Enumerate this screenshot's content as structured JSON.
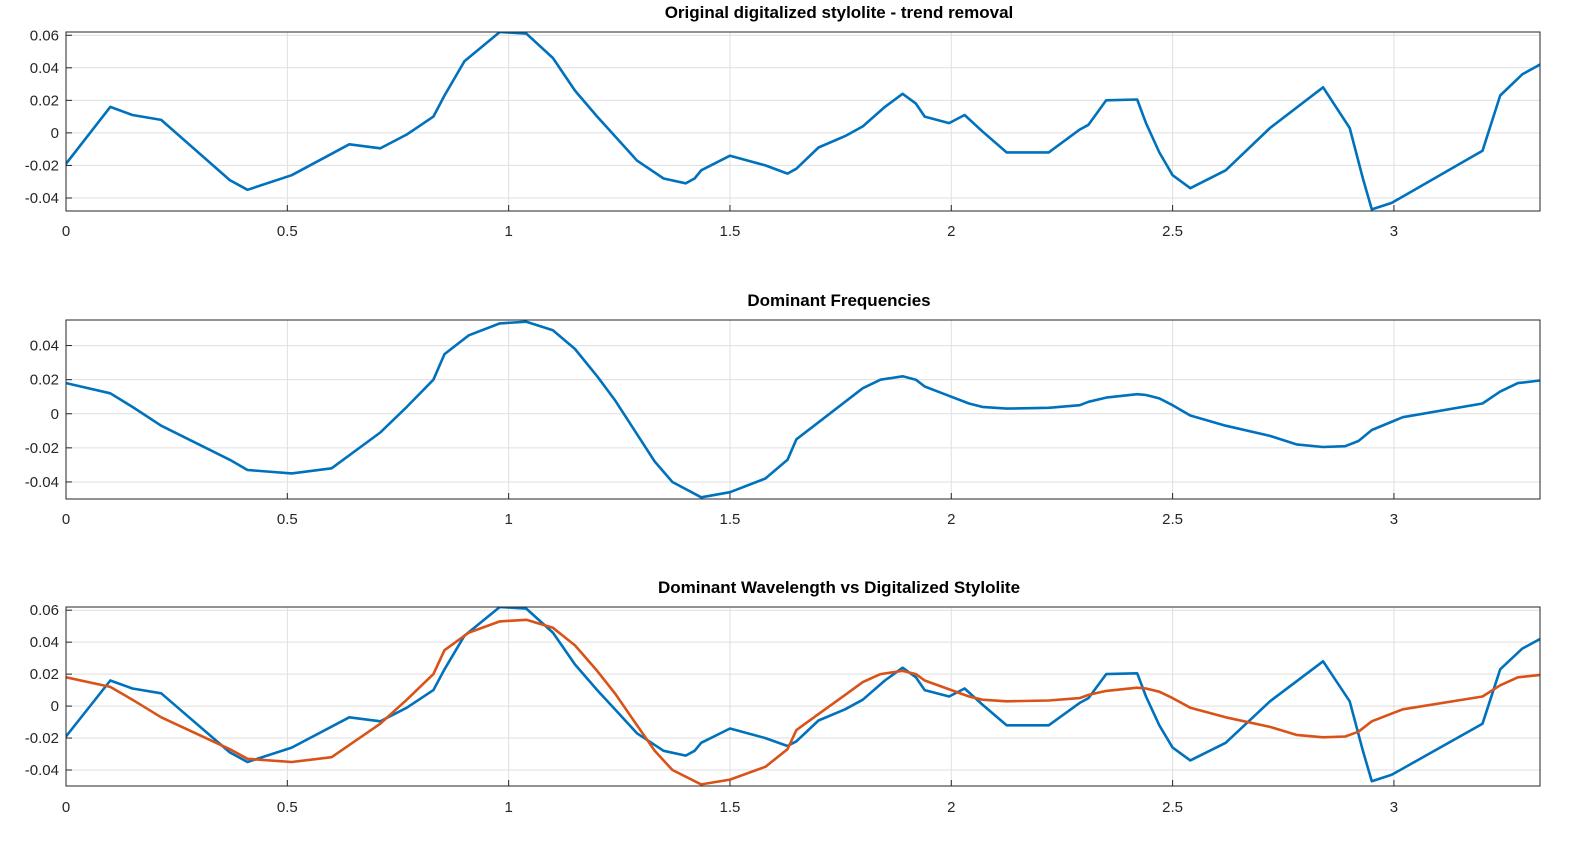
{
  "chart_data": [
    {
      "type": "line",
      "title": "Original digitalized stylolite - trend removal",
      "xlabel": "",
      "ylabel": "",
      "xlim": [
        0,
        3.33
      ],
      "ylim": [
        -0.048,
        0.062
      ],
      "grid": true,
      "xticks": [
        "0",
        "0.5",
        "1",
        "1.5",
        "2",
        "2.5",
        "3"
      ],
      "yticks": [
        "0.06",
        "0.04",
        "0.02",
        "0",
        "-0.02",
        "-0.04"
      ],
      "series": [
        {
          "color": "#0072bd",
          "x": [
            0,
            0.1,
            0.15,
            0.215,
            0.37,
            0.41,
            0.51,
            0.64,
            0.71,
            0.77,
            0.83,
            0.855,
            0.9,
            0.98,
            1.04,
            1.1,
            1.15,
            1.2,
            1.24,
            1.29,
            1.35,
            1.4,
            1.42,
            1.435,
            1.5,
            1.58,
            1.63,
            1.65,
            1.7,
            1.76,
            1.8,
            1.85,
            1.89,
            1.92,
            1.94,
            1.995,
            2.03,
            2.07,
            2.125,
            2.22,
            2.29,
            2.31,
            2.35,
            2.42,
            2.44,
            2.47,
            2.5,
            2.54,
            2.62,
            2.72,
            2.84,
            2.9,
            2.93,
            2.95,
            2.995,
            3.2,
            3.24,
            3.29,
            3.33
          ],
          "values": [
            -0.019,
            0.016,
            0.011,
            0.008,
            -0.029,
            -0.035,
            -0.026,
            -0.007,
            -0.0095,
            -0.001,
            0.01,
            0.023,
            0.044,
            0.062,
            0.061,
            0.046,
            0.026,
            0.01,
            -0.002,
            -0.017,
            -0.028,
            -0.031,
            -0.028,
            -0.023,
            -0.014,
            -0.02,
            -0.025,
            -0.022,
            -0.009,
            -0.002,
            0.004,
            0.016,
            0.024,
            0.018,
            0.01,
            0.006,
            0.011,
            0.001,
            -0.012,
            -0.012,
            0.002,
            0.005,
            0.02,
            0.0205,
            0.006,
            -0.012,
            -0.026,
            -0.034,
            -0.023,
            0.003,
            0.028,
            0.003,
            -0.028,
            -0.047,
            -0.043,
            -0.011,
            0.023,
            0.036,
            0.042
          ]
        }
      ]
    },
    {
      "type": "line",
      "title": "Dominant Frequencies",
      "xlabel": "",
      "ylabel": "",
      "xlim": [
        0,
        3.33
      ],
      "ylim": [
        -0.05,
        0.055
      ],
      "grid": true,
      "xticks": [
        "0",
        "0.5",
        "1",
        "1.5",
        "2",
        "2.5",
        "3"
      ],
      "yticks": [
        "0.04",
        "0.02",
        "0",
        "-0.02",
        "-0.04"
      ],
      "series": [
        {
          "color": "#0072bd",
          "x": [
            0,
            0.1,
            0.15,
            0.215,
            0.37,
            0.41,
            0.51,
            0.6,
            0.71,
            0.77,
            0.83,
            0.855,
            0.91,
            0.98,
            1.04,
            1.1,
            1.15,
            1.2,
            1.24,
            1.29,
            1.33,
            1.37,
            1.435,
            1.5,
            1.58,
            1.63,
            1.65,
            1.7,
            1.76,
            1.8,
            1.84,
            1.89,
            1.92,
            1.94,
            1.98,
            2.04,
            2.07,
            2.125,
            2.22,
            2.29,
            2.31,
            2.35,
            2.42,
            2.44,
            2.47,
            2.5,
            2.54,
            2.62,
            2.72,
            2.78,
            2.84,
            2.89,
            2.92,
            2.95,
            3.02,
            3.2,
            3.24,
            3.28,
            3.33
          ],
          "values": [
            0.018,
            0.012,
            0.004,
            -0.007,
            -0.027,
            -0.033,
            -0.035,
            -0.032,
            -0.011,
            0.004,
            0.02,
            0.035,
            0.046,
            0.053,
            0.054,
            0.049,
            0.038,
            0.022,
            0.008,
            -0.012,
            -0.028,
            -0.04,
            -0.049,
            -0.046,
            -0.038,
            -0.027,
            -0.015,
            -0.005,
            0.007,
            0.015,
            0.02,
            0.022,
            0.02,
            0.016,
            0.012,
            0.006,
            0.004,
            0.003,
            0.0035,
            0.005,
            0.007,
            0.0095,
            0.0115,
            0.011,
            0.009,
            0.005,
            -0.001,
            -0.007,
            -0.013,
            -0.018,
            -0.0195,
            -0.019,
            -0.016,
            -0.0095,
            -0.002,
            0.006,
            0.013,
            0.018,
            0.0195
          ]
        }
      ]
    },
    {
      "type": "line",
      "title": "Dominant Wavelength vs Digitalized Stylolite",
      "xlabel": "",
      "ylabel": "",
      "xlim": [
        0,
        3.33
      ],
      "ylim": [
        -0.05,
        0.062
      ],
      "grid": true,
      "xticks": [
        "0",
        "0.5",
        "1",
        "1.5",
        "2",
        "2.5",
        "3"
      ],
      "yticks": [
        "0.06",
        "0.04",
        "0.02",
        "0",
        "-0.02",
        "-0.04"
      ],
      "series": [
        {
          "color": "#0072bd",
          "x": [
            0,
            0.1,
            0.15,
            0.215,
            0.37,
            0.41,
            0.51,
            0.64,
            0.71,
            0.77,
            0.83,
            0.855,
            0.9,
            0.98,
            1.04,
            1.1,
            1.15,
            1.2,
            1.24,
            1.29,
            1.35,
            1.4,
            1.42,
            1.435,
            1.5,
            1.58,
            1.63,
            1.65,
            1.7,
            1.76,
            1.8,
            1.85,
            1.89,
            1.92,
            1.94,
            1.995,
            2.03,
            2.07,
            2.125,
            2.22,
            2.29,
            2.31,
            2.35,
            2.42,
            2.44,
            2.47,
            2.5,
            2.54,
            2.62,
            2.72,
            2.84,
            2.9,
            2.93,
            2.95,
            2.995,
            3.2,
            3.24,
            3.29,
            3.33
          ],
          "values": [
            -0.019,
            0.016,
            0.011,
            0.008,
            -0.029,
            -0.035,
            -0.026,
            -0.007,
            -0.0095,
            -0.001,
            0.01,
            0.023,
            0.044,
            0.062,
            0.061,
            0.046,
            0.026,
            0.01,
            -0.002,
            -0.017,
            -0.028,
            -0.031,
            -0.028,
            -0.023,
            -0.014,
            -0.02,
            -0.025,
            -0.022,
            -0.009,
            -0.002,
            0.004,
            0.016,
            0.024,
            0.018,
            0.01,
            0.006,
            0.011,
            0.001,
            -0.012,
            -0.012,
            0.002,
            0.005,
            0.02,
            0.0205,
            0.006,
            -0.012,
            -0.026,
            -0.034,
            -0.023,
            0.003,
            0.028,
            0.003,
            -0.028,
            -0.047,
            -0.043,
            -0.011,
            0.023,
            0.036,
            0.042
          ]
        },
        {
          "color": "#d95319",
          "x": [
            0,
            0.1,
            0.15,
            0.215,
            0.37,
            0.41,
            0.51,
            0.6,
            0.71,
            0.77,
            0.83,
            0.855,
            0.91,
            0.98,
            1.04,
            1.1,
            1.15,
            1.2,
            1.24,
            1.29,
            1.33,
            1.37,
            1.435,
            1.5,
            1.58,
            1.63,
            1.65,
            1.7,
            1.76,
            1.8,
            1.84,
            1.89,
            1.92,
            1.94,
            1.98,
            2.04,
            2.07,
            2.125,
            2.22,
            2.29,
            2.31,
            2.35,
            2.42,
            2.44,
            2.47,
            2.5,
            2.54,
            2.62,
            2.72,
            2.78,
            2.84,
            2.89,
            2.92,
            2.95,
            3.02,
            3.2,
            3.24,
            3.28,
            3.33
          ],
          "values": [
            0.018,
            0.012,
            0.004,
            -0.007,
            -0.027,
            -0.033,
            -0.035,
            -0.032,
            -0.011,
            0.004,
            0.02,
            0.035,
            0.046,
            0.053,
            0.054,
            0.049,
            0.038,
            0.022,
            0.008,
            -0.012,
            -0.028,
            -0.04,
            -0.049,
            -0.046,
            -0.038,
            -0.027,
            -0.015,
            -0.005,
            0.007,
            0.015,
            0.02,
            0.022,
            0.02,
            0.016,
            0.012,
            0.006,
            0.004,
            0.003,
            0.0035,
            0.005,
            0.007,
            0.0095,
            0.0115,
            0.011,
            0.009,
            0.005,
            -0.001,
            -0.007,
            -0.013,
            -0.018,
            -0.0195,
            -0.019,
            -0.016,
            -0.0095,
            -0.002,
            0.006,
            0.013,
            0.018,
            0.0195
          ]
        }
      ]
    }
  ]
}
